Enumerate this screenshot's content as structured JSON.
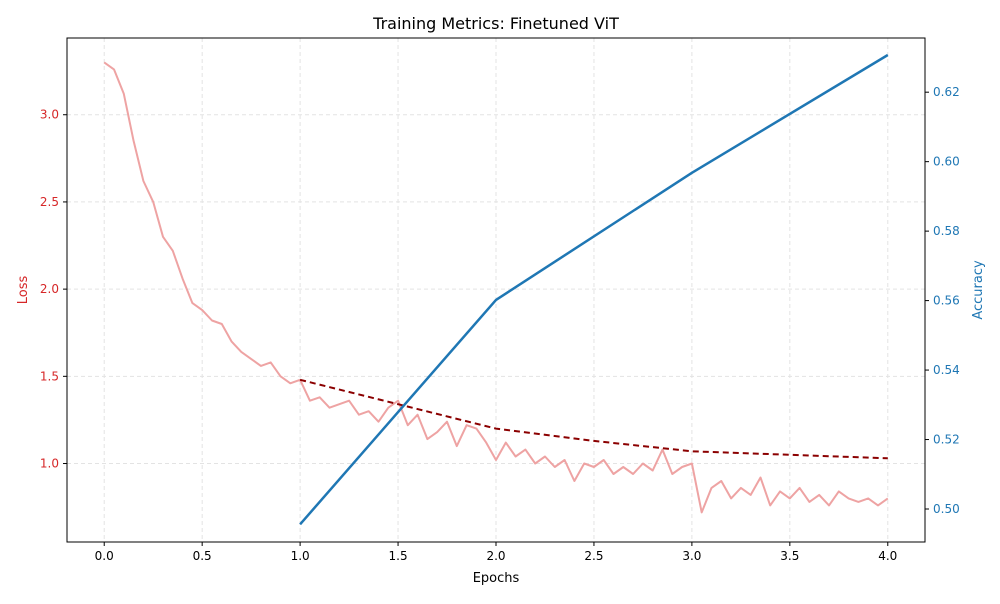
{
  "chart_data": {
    "type": "line",
    "title": "Training Metrics: Finetuned ViT",
    "xlabel": "Epochs",
    "ylabel_left": "Loss",
    "ylabel_right": "Accuracy",
    "xlim": [
      -0.19,
      4.19
    ],
    "ylim_left": [
      0.55,
      3.44
    ],
    "ylim_right": [
      0.4905,
      0.6356
    ],
    "x_ticks": [
      "0.0",
      "0.5",
      "1.0",
      "1.5",
      "2.0",
      "2.5",
      "3.0",
      "3.5",
      "4.0"
    ],
    "y_left_ticks": [
      "1.0",
      "1.5",
      "2.0",
      "2.5",
      "3.0"
    ],
    "y_right_ticks": [
      "0.50",
      "0.52",
      "0.54",
      "0.56",
      "0.58",
      "0.60",
      "0.62"
    ],
    "grid": true,
    "colors": {
      "train_loss": "#eea3a3",
      "val_loss": "#8b0000",
      "accuracy": "#1f77b4",
      "left_axis": "#d62728",
      "right_axis": "#1f77b4"
    },
    "series": [
      {
        "axis": "left",
        "style": "solid-light",
        "x": [
          0,
          0.05,
          0.1,
          0.15,
          0.2,
          0.25,
          0.3,
          0.35,
          0.4,
          0.45,
          0.5,
          0.55,
          0.6,
          0.65,
          0.7,
          0.75,
          0.8,
          0.85,
          0.9,
          0.95,
          1.0,
          1.05,
          1.1,
          1.15,
          1.2,
          1.25,
          1.3,
          1.35,
          1.4,
          1.45,
          1.5,
          1.55,
          1.6,
          1.65,
          1.7,
          1.75,
          1.8,
          1.85,
          1.9,
          1.95,
          2.0,
          2.05,
          2.1,
          2.15,
          2.2,
          2.25,
          2.3,
          2.35,
          2.4,
          2.45,
          2.5,
          2.55,
          2.6,
          2.65,
          2.7,
          2.75,
          2.8,
          2.85,
          2.9,
          2.95,
          3.0,
          3.05,
          3.1,
          3.15,
          3.2,
          3.25,
          3.3,
          3.35,
          3.4,
          3.45,
          3.5,
          3.55,
          3.6,
          3.65,
          3.7,
          3.75,
          3.8,
          3.85,
          3.9,
          3.95,
          4.0
        ],
        "values": [
          3.3,
          3.26,
          3.12,
          2.85,
          2.62,
          2.5,
          2.3,
          2.22,
          2.06,
          1.92,
          1.88,
          1.82,
          1.8,
          1.7,
          1.64,
          1.6,
          1.56,
          1.58,
          1.5,
          1.46,
          1.48,
          1.36,
          1.38,
          1.32,
          1.34,
          1.36,
          1.28,
          1.3,
          1.24,
          1.32,
          1.36,
          1.22,
          1.28,
          1.14,
          1.18,
          1.24,
          1.1,
          1.22,
          1.2,
          1.12,
          1.02,
          1.12,
          1.04,
          1.08,
          1.0,
          1.04,
          0.98,
          1.02,
          0.9,
          1.0,
          0.98,
          1.02,
          0.94,
          0.98,
          0.94,
          1.0,
          0.96,
          1.08,
          0.94,
          0.98,
          1.0,
          0.72,
          0.86,
          0.9,
          0.8,
          0.86,
          0.82,
          0.92,
          0.76,
          0.84,
          0.8,
          0.86,
          0.78,
          0.82,
          0.76,
          0.84,
          0.8,
          0.78,
          0.8,
          0.76,
          0.8
        ]
      },
      {
        "axis": "left",
        "style": "dashed",
        "x": [
          1.0,
          1.5,
          2.0,
          2.5,
          3.0,
          3.5,
          4.0
        ],
        "values": [
          1.48,
          1.34,
          1.2,
          1.13,
          1.07,
          1.05,
          1.03
        ]
      },
      {
        "axis": "right",
        "style": "solid",
        "x": [
          1,
          2,
          3,
          4
        ],
        "values": [
          0.4956,
          0.5602,
          0.5968,
          0.6307
        ]
      }
    ]
  }
}
